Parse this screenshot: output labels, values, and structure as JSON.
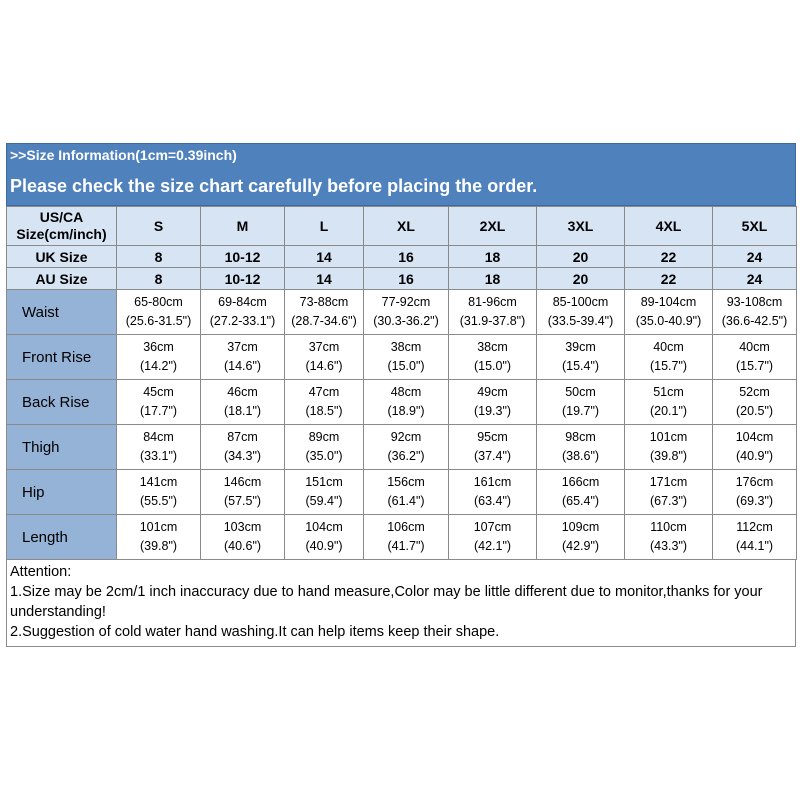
{
  "banner": {
    "size_info": ">>Size Information(1cm=0.39inch)",
    "check_message": "Please check the size chart carefully before placing the order."
  },
  "header_row": {
    "label_line1": "US/CA",
    "label_line2": "Size(cm/inch)",
    "sizes": [
      "S",
      "M",
      "L",
      "XL",
      "2XL",
      "3XL",
      "4XL",
      "5XL"
    ]
  },
  "uk_row": {
    "label": "UK Size",
    "values": [
      "8",
      "10-12",
      "14",
      "16",
      "18",
      "20",
      "22",
      "24"
    ]
  },
  "au_row": {
    "label": "AU Size",
    "values": [
      "8",
      "10-12",
      "14",
      "16",
      "18",
      "20",
      "22",
      "24"
    ]
  },
  "measurements": [
    {
      "label": "Waist",
      "cm": [
        "65-80cm",
        "69-84cm",
        "73-88cm",
        "77-92cm",
        "81-96cm",
        "85-100cm",
        "89-104cm",
        "93-108cm"
      ],
      "inch": [
        "(25.6-31.5\")",
        "(27.2-33.1\")",
        "(28.7-34.6\")",
        "(30.3-36.2\")",
        "(31.9-37.8\")",
        "(33.5-39.4\")",
        "(35.0-40.9\")",
        "(36.6-42.5\")"
      ]
    },
    {
      "label": "Front Rise",
      "cm": [
        "36cm",
        "37cm",
        "37cm",
        "38cm",
        "38cm",
        "39cm",
        "40cm",
        "40cm"
      ],
      "inch": [
        "(14.2\")",
        "(14.6\")",
        "(14.6\")",
        "(15.0\")",
        "(15.0\")",
        "(15.4\")",
        "(15.7\")",
        "(15.7\")"
      ]
    },
    {
      "label": "Back Rise",
      "cm": [
        "45cm",
        "46cm",
        "47cm",
        "48cm",
        "49cm",
        "50cm",
        "51cm",
        "52cm"
      ],
      "inch": [
        "(17.7\")",
        "(18.1\")",
        "(18.5\")",
        "(18.9\")",
        "(19.3\")",
        "(19.7\")",
        "(20.1\")",
        "(20.5\")"
      ]
    },
    {
      "label": "Thigh",
      "cm": [
        "84cm",
        "87cm",
        "89cm",
        "92cm",
        "95cm",
        "98cm",
        "101cm",
        "104cm"
      ],
      "inch": [
        "(33.1\")",
        "(34.3\")",
        "(35.0\")",
        "(36.2\")",
        "(37.4\")",
        "(38.6\")",
        "(39.8\")",
        "(40.9\")"
      ]
    },
    {
      "label": "Hip",
      "cm": [
        "141cm",
        "146cm",
        "151cm",
        "156cm",
        "161cm",
        "166cm",
        "171cm",
        "176cm"
      ],
      "inch": [
        "(55.5\")",
        "(57.5\")",
        "(59.4\")",
        "(61.4\")",
        "(63.4\")",
        "(65.4\")",
        "(67.3\")",
        "(69.3\")"
      ]
    },
    {
      "label": "Length",
      "cm": [
        "101cm",
        "103cm",
        "104cm",
        "106cm",
        "107cm",
        "109cm",
        "110cm",
        "112cm"
      ],
      "inch": [
        "(39.8\")",
        "(40.6\")",
        "(40.9\")",
        "(41.7\")",
        "(42.1\")",
        "(42.9\")",
        "(43.3\")",
        "(44.1\")"
      ]
    }
  ],
  "notes": {
    "title": "Attention:",
    "line1": "1.Size may be 2cm/1 inch inaccuracy due to hand measure,Color may be little different due to monitor,thanks for your understanding!",
    "line2": "2.Suggestion of cold water hand washing.It can help items keep their shape."
  },
  "colors": {
    "banner_blue": "#4f81bd",
    "header_light_blue": "#d6e4f4",
    "label_blue": "#95b3d7"
  }
}
